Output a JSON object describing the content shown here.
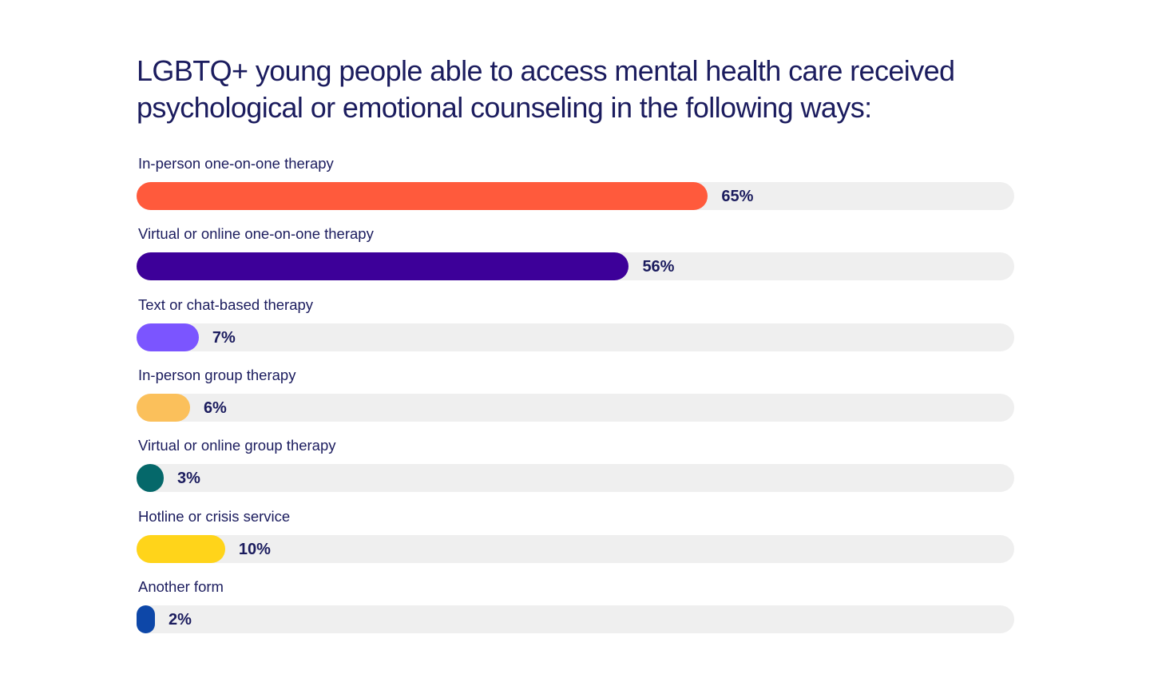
{
  "chart_data": {
    "type": "bar",
    "orientation": "horizontal",
    "title": "LGBTQ+ young people able to access mental health care received psychological or emotional counseling in the following ways:",
    "value_max": 100,
    "unit": "%",
    "bars": [
      {
        "label": "In-person one-on-one therapy",
        "value": 65,
        "value_label": "65%",
        "color": "#ff5a3c"
      },
      {
        "label": "Virtual or online one-on-one therapy",
        "value": 56,
        "value_label": "56%",
        "color": "#3d0099"
      },
      {
        "label": "Text or chat-based therapy",
        "value": 7,
        "value_label": "7%",
        "color": "#7b55ff"
      },
      {
        "label": "In-person group therapy",
        "value": 6,
        "value_label": "6%",
        "color": "#fbc05b"
      },
      {
        "label": "Virtual or online group therapy",
        "value": 3,
        "value_label": "3%",
        "color": "#05686a"
      },
      {
        "label": "Hotline or crisis service",
        "value": 10,
        "value_label": "10%",
        "color": "#ffd41a"
      },
      {
        "label": "Another form",
        "value": 2,
        "value_label": "2%",
        "color": "#0d47a8"
      }
    ],
    "track_color": "#efefef"
  }
}
